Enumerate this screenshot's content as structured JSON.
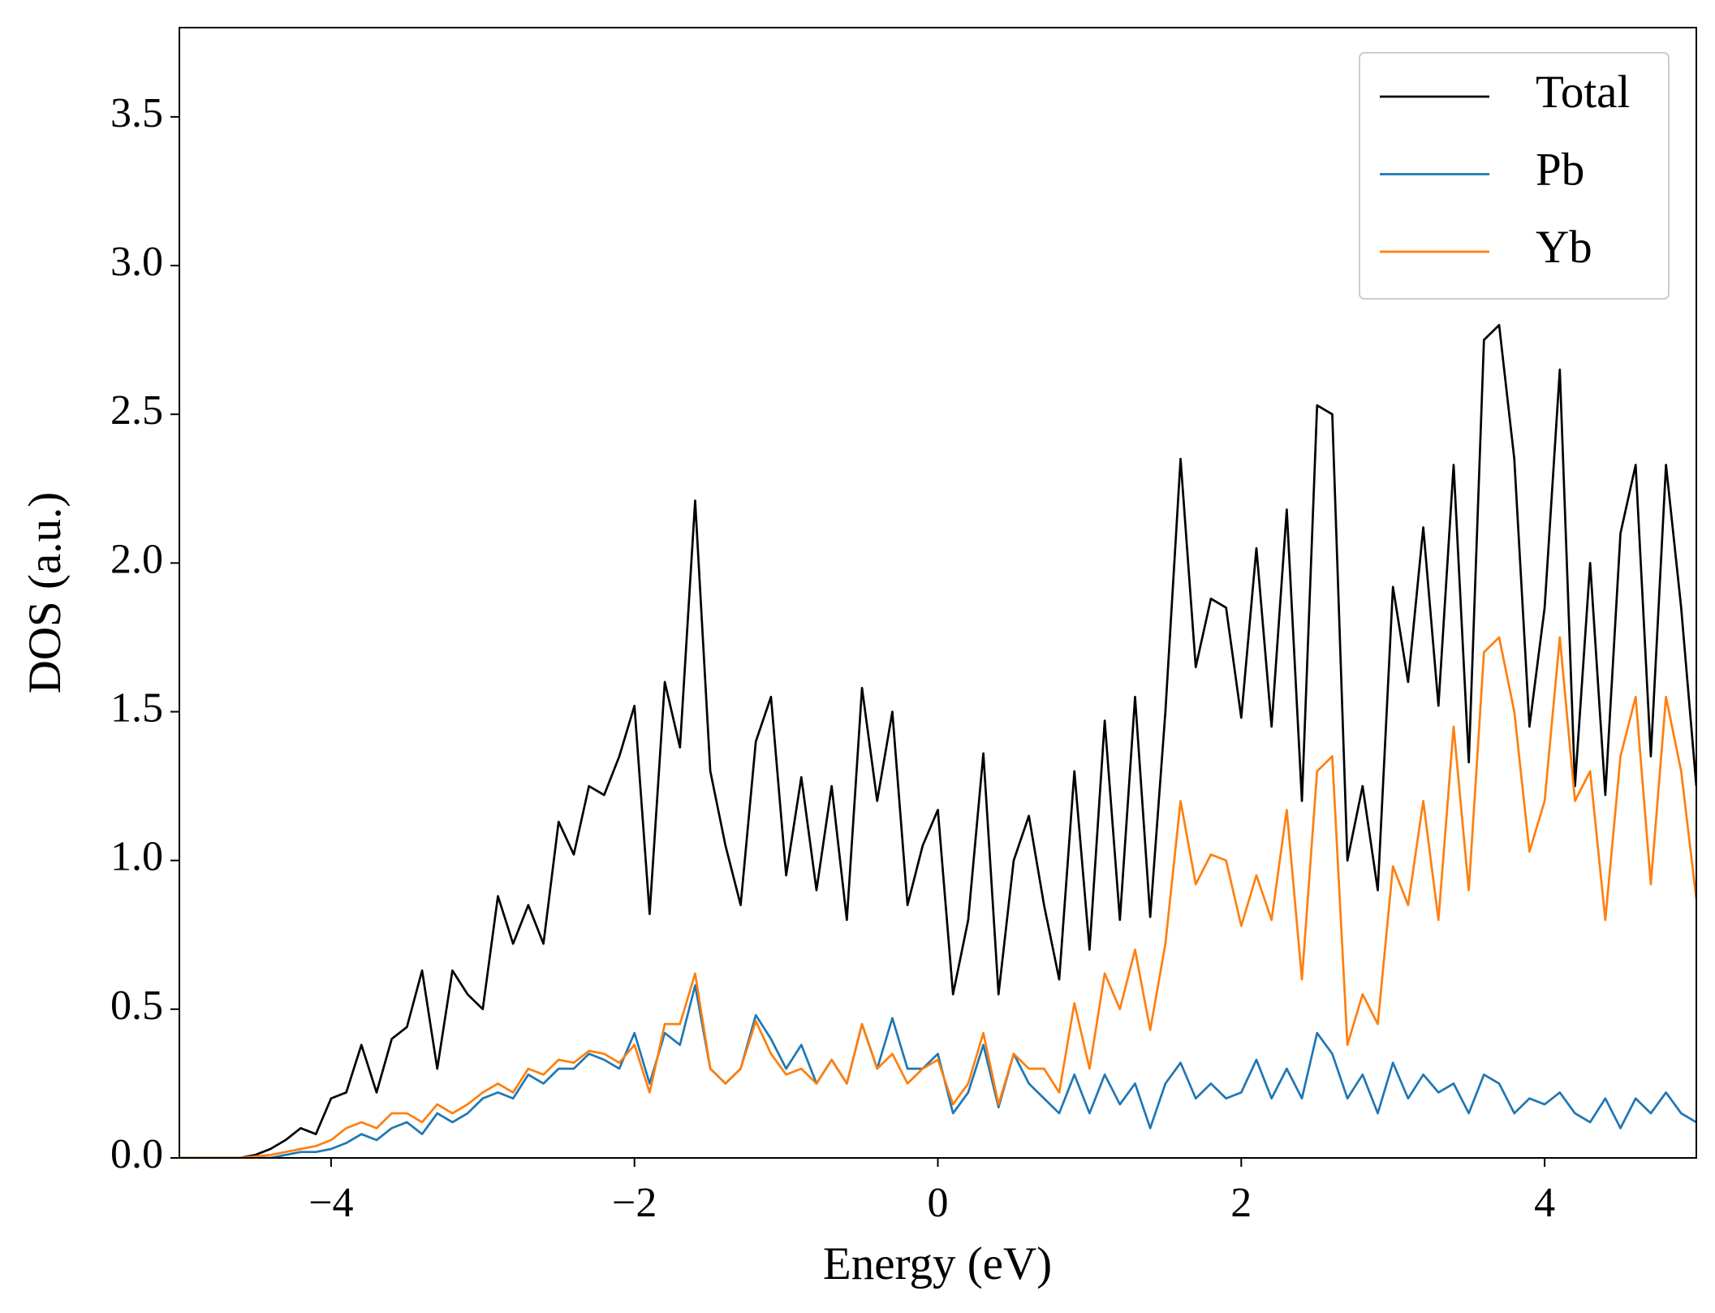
{
  "chart_data": {
    "type": "line",
    "xlabel": "Energy (eV)",
    "ylabel": "DOS (a.u.)",
    "xlim": [
      -5,
      5
    ],
    "ylim": [
      0,
      3.8
    ],
    "xticks": [
      {
        "value": -4,
        "label": "−4"
      },
      {
        "value": -2,
        "label": "−2"
      },
      0,
      2,
      4
    ],
    "yticks": [
      {
        "value": 0,
        "label": "0.0"
      },
      0.5,
      {
        "value": 1,
        "label": "1.0"
      },
      1.5,
      {
        "value": 2,
        "label": "2.0"
      },
      2.5,
      {
        "value": 3,
        "label": "3.0"
      },
      3.5
    ],
    "grid": false,
    "legend": "upper right",
    "x": [
      -5,
      -4.9,
      -4.8,
      -4.7,
      -4.6,
      -4.5,
      -4.4,
      -4.3,
      -4.2,
      -4.1,
      -4,
      -3.9,
      -3.8,
      -3.7,
      -3.6,
      -3.5,
      -3.4,
      -3.3,
      -3.2,
      -3.1,
      -3,
      -2.9,
      -2.8,
      -2.7,
      -2.6,
      -2.5,
      -2.4,
      -2.3,
      -2.2,
      -2.1,
      -2,
      -1.9,
      -1.8,
      -1.7,
      -1.6,
      -1.5,
      -1.4,
      -1.3,
      -1.2,
      -1.1,
      -1,
      -0.9,
      -0.8,
      -0.7,
      -0.6,
      -0.5,
      -0.4,
      -0.3,
      -0.2,
      -0.1,
      0,
      0.1,
      0.2,
      0.3,
      0.4,
      0.5,
      0.6,
      0.7,
      0.8,
      0.9,
      1,
      1.1,
      1.2,
      1.3,
      1.4,
      1.5,
      1.6,
      1.7,
      1.8,
      1.9,
      2,
      2.1,
      2.2,
      2.3,
      2.4,
      2.5,
      2.6,
      2.7,
      2.8,
      2.9,
      3,
      3.1,
      3.2,
      3.3,
      3.4,
      3.5,
      3.6,
      3.7,
      3.8,
      3.9,
      4,
      4.1,
      4.2,
      4.3,
      4.4,
      4.5,
      4.6,
      4.7,
      4.8,
      4.9,
      5
    ],
    "series": [
      {
        "name": "Total",
        "color": "#000000",
        "values": [
          0,
          0,
          0,
          0,
          0,
          0.01,
          0.03,
          0.06,
          0.1,
          0.08,
          0.2,
          0.22,
          0.38,
          0.22,
          0.4,
          0.44,
          0.63,
          0.3,
          0.63,
          0.55,
          0.5,
          0.88,
          0.72,
          0.85,
          0.72,
          1.13,
          1.02,
          1.25,
          1.22,
          1.35,
          1.52,
          0.82,
          1.6,
          1.38,
          2.21,
          1.3,
          1.05,
          0.85,
          1.4,
          1.55,
          0.95,
          1.28,
          0.9,
          1.25,
          0.8,
          1.58,
          1.2,
          1.5,
          0.85,
          1.05,
          1.17,
          0.55,
          0.8,
          1.36,
          0.55,
          1.0,
          1.15,
          0.85,
          0.6,
          1.3,
          0.7,
          1.47,
          0.8,
          1.55,
          0.81,
          1.5,
          2.35,
          1.65,
          1.88,
          1.85,
          1.48,
          2.05,
          1.45,
          2.18,
          1.2,
          2.53,
          2.5,
          1.0,
          1.25,
          0.9,
          1.92,
          1.6,
          2.12,
          1.52,
          2.33,
          1.33,
          2.75,
          2.8,
          2.35,
          1.45,
          1.85,
          2.65,
          1.25,
          2.0,
          1.22,
          2.1,
          2.33,
          1.35,
          2.33,
          1.85,
          1.25
        ]
      },
      {
        "name": "Pb",
        "color": "#1f77b4",
        "values": [
          0,
          0,
          0,
          0,
          0,
          0,
          0,
          0.01,
          0.02,
          0.02,
          0.03,
          0.05,
          0.08,
          0.06,
          0.1,
          0.12,
          0.08,
          0.15,
          0.12,
          0.15,
          0.2,
          0.22,
          0.2,
          0.28,
          0.25,
          0.3,
          0.3,
          0.35,
          0.33,
          0.3,
          0.42,
          0.25,
          0.42,
          0.38,
          0.58,
          0.3,
          0.25,
          0.3,
          0.48,
          0.4,
          0.3,
          0.38,
          0.25,
          0.33,
          0.25,
          0.45,
          0.3,
          0.47,
          0.3,
          0.3,
          0.35,
          0.15,
          0.22,
          0.38,
          0.17,
          0.35,
          0.25,
          0.2,
          0.15,
          0.28,
          0.15,
          0.28,
          0.18,
          0.25,
          0.1,
          0.25,
          0.32,
          0.2,
          0.25,
          0.2,
          0.22,
          0.33,
          0.2,
          0.3,
          0.2,
          0.42,
          0.35,
          0.2,
          0.28,
          0.15,
          0.32,
          0.2,
          0.28,
          0.22,
          0.25,
          0.15,
          0.28,
          0.25,
          0.15,
          0.2,
          0.18,
          0.22,
          0.15,
          0.12,
          0.2,
          0.1,
          0.2,
          0.15,
          0.22,
          0.15,
          0.12
        ]
      },
      {
        "name": "Yb",
        "color": "#ff7f0e",
        "values": [
          0,
          0,
          0,
          0,
          0,
          0.005,
          0.01,
          0.02,
          0.03,
          0.04,
          0.06,
          0.1,
          0.12,
          0.1,
          0.15,
          0.15,
          0.12,
          0.18,
          0.15,
          0.18,
          0.22,
          0.25,
          0.22,
          0.3,
          0.28,
          0.33,
          0.32,
          0.36,
          0.35,
          0.32,
          0.38,
          0.22,
          0.45,
          0.45,
          0.62,
          0.3,
          0.25,
          0.3,
          0.46,
          0.35,
          0.28,
          0.3,
          0.25,
          0.33,
          0.25,
          0.45,
          0.3,
          0.35,
          0.25,
          0.3,
          0.33,
          0.18,
          0.25,
          0.42,
          0.18,
          0.35,
          0.3,
          0.3,
          0.22,
          0.52,
          0.3,
          0.62,
          0.5,
          0.7,
          0.43,
          0.72,
          1.2,
          0.92,
          1.02,
          1.0,
          0.78,
          0.95,
          0.8,
          1.17,
          0.6,
          1.3,
          1.35,
          0.38,
          0.55,
          0.45,
          0.98,
          0.85,
          1.2,
          0.8,
          1.45,
          0.9,
          1.7,
          1.75,
          1.5,
          1.03,
          1.2,
          1.75,
          1.2,
          1.3,
          0.8,
          1.35,
          1.55,
          0.92,
          1.55,
          1.3,
          0.87
        ]
      }
    ]
  }
}
